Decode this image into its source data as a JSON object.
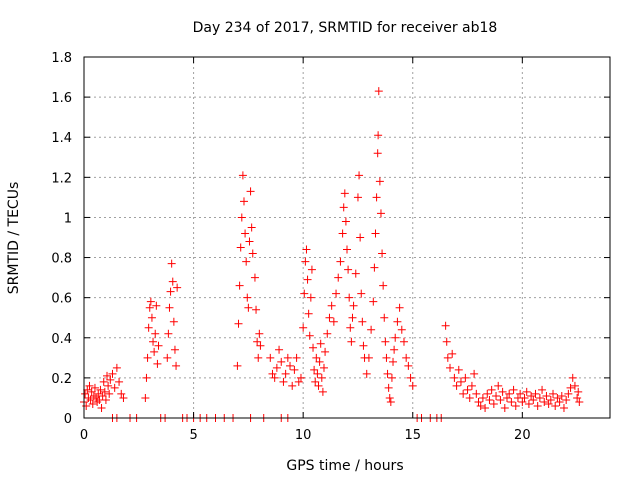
{
  "chart_data": {
    "type": "scatter",
    "title": "Day 234 of 2017, SRMTID for receiver ab18",
    "xlabel": "GPS time / hours",
    "ylabel": "SRMTID / TECUs",
    "xlim": [
      0,
      24
    ],
    "ylim": [
      0,
      1.8
    ],
    "grid": true,
    "marker": "+",
    "color": "#ff0000",
    "x_ticks": [
      0,
      5,
      10,
      15,
      20
    ],
    "y_ticks": [
      0,
      0.2,
      0.4,
      0.6,
      0.8,
      1,
      1.2,
      1.4,
      1.6,
      1.8
    ],
    "x_tick_labels": [
      "0",
      "5",
      "10",
      "15",
      "20"
    ],
    "y_tick_labels": [
      "0",
      "0.2",
      "0.4",
      "0.6",
      "0.8",
      "1",
      "1.2",
      "1.4",
      "1.6",
      "1.8"
    ],
    "series": [
      {
        "name": "SRMTID",
        "points": [
          [
            0.0,
            0.08
          ],
          [
            0.05,
            0.12
          ],
          [
            0.1,
            0.06
          ],
          [
            0.15,
            0.14
          ],
          [
            0.2,
            0.1
          ],
          [
            0.25,
            0.16
          ],
          [
            0.3,
            0.09
          ],
          [
            0.35,
            0.13
          ],
          [
            0.4,
            0.07
          ],
          [
            0.45,
            0.11
          ],
          [
            0.5,
            0.15
          ],
          [
            0.55,
            0.1
          ],
          [
            0.6,
            0.08
          ],
          [
            0.65,
            0.12
          ],
          [
            0.7,
            0.09
          ],
          [
            0.75,
            0.14
          ],
          [
            0.8,
            0.05
          ],
          [
            0.85,
            0.11
          ],
          [
            0.9,
            0.18
          ],
          [
            0.95,
            0.13
          ],
          [
            1.0,
            0.09
          ],
          [
            1.05,
            0.21
          ],
          [
            1.1,
            0.16
          ],
          [
            1.15,
            0.12
          ],
          [
            1.2,
            0.19
          ],
          [
            1.3,
            0.22
          ],
          [
            1.4,
            0.15
          ],
          [
            1.5,
            0.25
          ],
          [
            1.6,
            0.18
          ],
          [
            1.7,
            0.12
          ],
          [
            1.8,
            0.1
          ],
          [
            2.8,
            0.1
          ],
          [
            2.85,
            0.2
          ],
          [
            2.9,
            0.3
          ],
          [
            2.95,
            0.45
          ],
          [
            3.0,
            0.55
          ],
          [
            3.05,
            0.58
          ],
          [
            3.1,
            0.5
          ],
          [
            3.15,
            0.38
          ],
          [
            3.2,
            0.33
          ],
          [
            3.25,
            0.42
          ],
          [
            3.3,
            0.56
          ],
          [
            3.35,
            0.27
          ],
          [
            3.4,
            0.36
          ],
          [
            3.8,
            0.3
          ],
          [
            3.85,
            0.42
          ],
          [
            3.9,
            0.55
          ],
          [
            3.95,
            0.63
          ],
          [
            4.0,
            0.77
          ],
          [
            4.05,
            0.68
          ],
          [
            4.1,
            0.48
          ],
          [
            4.15,
            0.34
          ],
          [
            4.2,
            0.26
          ],
          [
            4.25,
            0.65
          ],
          [
            7.0,
            0.26
          ],
          [
            7.05,
            0.47
          ],
          [
            7.1,
            0.66
          ],
          [
            7.15,
            0.85
          ],
          [
            7.2,
            1.0
          ],
          [
            7.25,
            1.21
          ],
          [
            7.3,
            1.08
          ],
          [
            7.35,
            0.92
          ],
          [
            7.4,
            0.78
          ],
          [
            7.45,
            0.6
          ],
          [
            7.5,
            0.55
          ],
          [
            7.55,
            0.88
          ],
          [
            7.6,
            1.13
          ],
          [
            7.65,
            0.95
          ],
          [
            7.7,
            0.82
          ],
          [
            7.8,
            0.7
          ],
          [
            7.85,
            0.54
          ],
          [
            7.9,
            0.38
          ],
          [
            7.95,
            0.3
          ],
          [
            8.0,
            0.42
          ],
          [
            8.05,
            0.36
          ],
          [
            8.5,
            0.3
          ],
          [
            8.6,
            0.22
          ],
          [
            8.7,
            0.2
          ],
          [
            8.8,
            0.25
          ],
          [
            8.9,
            0.34
          ],
          [
            9.0,
            0.28
          ],
          [
            9.1,
            0.18
          ],
          [
            9.2,
            0.22
          ],
          [
            9.3,
            0.3
          ],
          [
            9.4,
            0.26
          ],
          [
            9.5,
            0.16
          ],
          [
            9.6,
            0.24
          ],
          [
            9.7,
            0.3
          ],
          [
            9.8,
            0.18
          ],
          [
            9.9,
            0.2
          ],
          [
            10.0,
            0.45
          ],
          [
            10.05,
            0.62
          ],
          [
            10.1,
            0.78
          ],
          [
            10.15,
            0.84
          ],
          [
            10.2,
            0.69
          ],
          [
            10.25,
            0.52
          ],
          [
            10.3,
            0.41
          ],
          [
            10.35,
            0.6
          ],
          [
            10.4,
            0.74
          ],
          [
            10.45,
            0.35
          ],
          [
            10.5,
            0.24
          ],
          [
            10.55,
            0.18
          ],
          [
            10.6,
            0.3
          ],
          [
            10.65,
            0.22
          ],
          [
            10.7,
            0.16
          ],
          [
            10.75,
            0.28
          ],
          [
            10.8,
            0.37
          ],
          [
            10.85,
            0.2
          ],
          [
            10.9,
            0.13
          ],
          [
            10.95,
            0.25
          ],
          [
            11.0,
            0.33
          ],
          [
            11.1,
            0.42
          ],
          [
            11.2,
            0.5
          ],
          [
            11.3,
            0.56
          ],
          [
            11.4,
            0.48
          ],
          [
            11.5,
            0.62
          ],
          [
            11.6,
            0.7
          ],
          [
            11.7,
            0.78
          ],
          [
            11.8,
            0.92
          ],
          [
            11.85,
            1.05
          ],
          [
            11.9,
            1.12
          ],
          [
            11.95,
            0.98
          ],
          [
            12.0,
            0.84
          ],
          [
            12.05,
            0.74
          ],
          [
            12.1,
            0.6
          ],
          [
            12.15,
            0.45
          ],
          [
            12.2,
            0.38
          ],
          [
            12.25,
            0.5
          ],
          [
            12.3,
            0.56
          ],
          [
            12.4,
            0.72
          ],
          [
            12.5,
            1.1
          ],
          [
            12.55,
            1.21
          ],
          [
            12.6,
            0.9
          ],
          [
            12.65,
            0.62
          ],
          [
            12.7,
            0.48
          ],
          [
            12.75,
            0.36
          ],
          [
            12.8,
            0.3
          ],
          [
            12.9,
            0.22
          ],
          [
            13.0,
            0.3
          ],
          [
            13.1,
            0.44
          ],
          [
            13.2,
            0.58
          ],
          [
            13.25,
            0.75
          ],
          [
            13.3,
            0.92
          ],
          [
            13.35,
            1.1
          ],
          [
            13.4,
            1.32
          ],
          [
            13.42,
            1.41
          ],
          [
            13.45,
            1.63
          ],
          [
            13.5,
            1.18
          ],
          [
            13.55,
            1.02
          ],
          [
            13.6,
            0.82
          ],
          [
            13.65,
            0.66
          ],
          [
            13.7,
            0.5
          ],
          [
            13.75,
            0.38
          ],
          [
            13.8,
            0.3
          ],
          [
            13.85,
            0.22
          ],
          [
            13.9,
            0.15
          ],
          [
            13.95,
            0.1
          ],
          [
            14.0,
            0.08
          ],
          [
            14.05,
            0.2
          ],
          [
            14.1,
            0.28
          ],
          [
            14.15,
            0.34
          ],
          [
            14.2,
            0.4
          ],
          [
            14.3,
            0.48
          ],
          [
            14.4,
            0.55
          ],
          [
            14.5,
            0.44
          ],
          [
            14.6,
            0.38
          ],
          [
            14.7,
            0.3
          ],
          [
            14.8,
            0.26
          ],
          [
            14.9,
            0.2
          ],
          [
            15.0,
            0.16
          ],
          [
            16.5,
            0.46
          ],
          [
            16.55,
            0.38
          ],
          [
            16.6,
            0.3
          ],
          [
            16.7,
            0.25
          ],
          [
            16.8,
            0.32
          ],
          [
            16.9,
            0.2
          ],
          [
            17.0,
            0.16
          ],
          [
            17.1,
            0.24
          ],
          [
            17.2,
            0.18
          ],
          [
            17.3,
            0.12
          ],
          [
            17.4,
            0.2
          ],
          [
            17.5,
            0.14
          ],
          [
            17.6,
            0.1
          ],
          [
            17.7,
            0.16
          ],
          [
            17.8,
            0.22
          ],
          [
            17.9,
            0.12
          ],
          [
            18.0,
            0.08
          ],
          [
            18.1,
            0.06
          ],
          [
            18.2,
            0.1
          ],
          [
            18.3,
            0.05
          ],
          [
            18.4,
            0.12
          ],
          [
            18.5,
            0.09
          ],
          [
            18.6,
            0.14
          ],
          [
            18.7,
            0.07
          ],
          [
            18.8,
            0.11
          ],
          [
            18.9,
            0.16
          ],
          [
            19.0,
            0.09
          ],
          [
            19.1,
            0.13
          ],
          [
            19.2,
            0.05
          ],
          [
            19.3,
            0.1
          ],
          [
            19.4,
            0.12
          ],
          [
            19.5,
            0.08
          ],
          [
            19.6,
            0.14
          ],
          [
            19.7,
            0.06
          ],
          [
            19.8,
            0.1
          ],
          [
            19.9,
            0.12
          ],
          [
            20.0,
            0.08
          ],
          [
            20.1,
            0.1
          ],
          [
            20.2,
            0.13
          ],
          [
            20.3,
            0.07
          ],
          [
            20.4,
            0.11
          ],
          [
            20.5,
            0.09
          ],
          [
            20.6,
            0.12
          ],
          [
            20.7,
            0.06
          ],
          [
            20.8,
            0.1
          ],
          [
            20.9,
            0.14
          ],
          [
            21.0,
            0.08
          ],
          [
            21.1,
            0.11
          ],
          [
            21.2,
            0.07
          ],
          [
            21.3,
            0.09
          ],
          [
            21.4,
            0.12
          ],
          [
            21.5,
            0.06
          ],
          [
            21.6,
            0.1
          ],
          [
            21.7,
            0.08
          ],
          [
            21.8,
            0.11
          ],
          [
            21.9,
            0.05
          ],
          [
            22.0,
            0.09
          ],
          [
            22.1,
            0.12
          ],
          [
            22.2,
            0.15
          ],
          [
            22.3,
            0.2
          ],
          [
            22.4,
            0.16
          ],
          [
            22.5,
            0.1
          ],
          [
            22.55,
            0.13
          ],
          [
            22.6,
            0.08
          ],
          [
            1.3,
            0.0
          ],
          [
            1.5,
            0.0
          ],
          [
            2.1,
            0.0
          ],
          [
            2.4,
            0.0
          ],
          [
            3.5,
            0.0
          ],
          [
            3.7,
            0.0
          ],
          [
            4.5,
            0.0
          ],
          [
            4.7,
            0.0
          ],
          [
            5.0,
            0.0
          ],
          [
            5.3,
            0.0
          ],
          [
            5.6,
            0.0
          ],
          [
            6.0,
            0.0
          ],
          [
            6.4,
            0.0
          ],
          [
            6.8,
            0.0
          ],
          [
            7.6,
            0.0
          ],
          [
            8.2,
            0.0
          ],
          [
            9.0,
            0.0
          ],
          [
            9.3,
            0.0
          ],
          [
            15.2,
            0.0
          ],
          [
            15.4,
            0.0
          ],
          [
            15.8,
            0.0
          ],
          [
            16.1,
            0.0
          ],
          [
            16.3,
            0.0
          ]
        ]
      }
    ]
  }
}
